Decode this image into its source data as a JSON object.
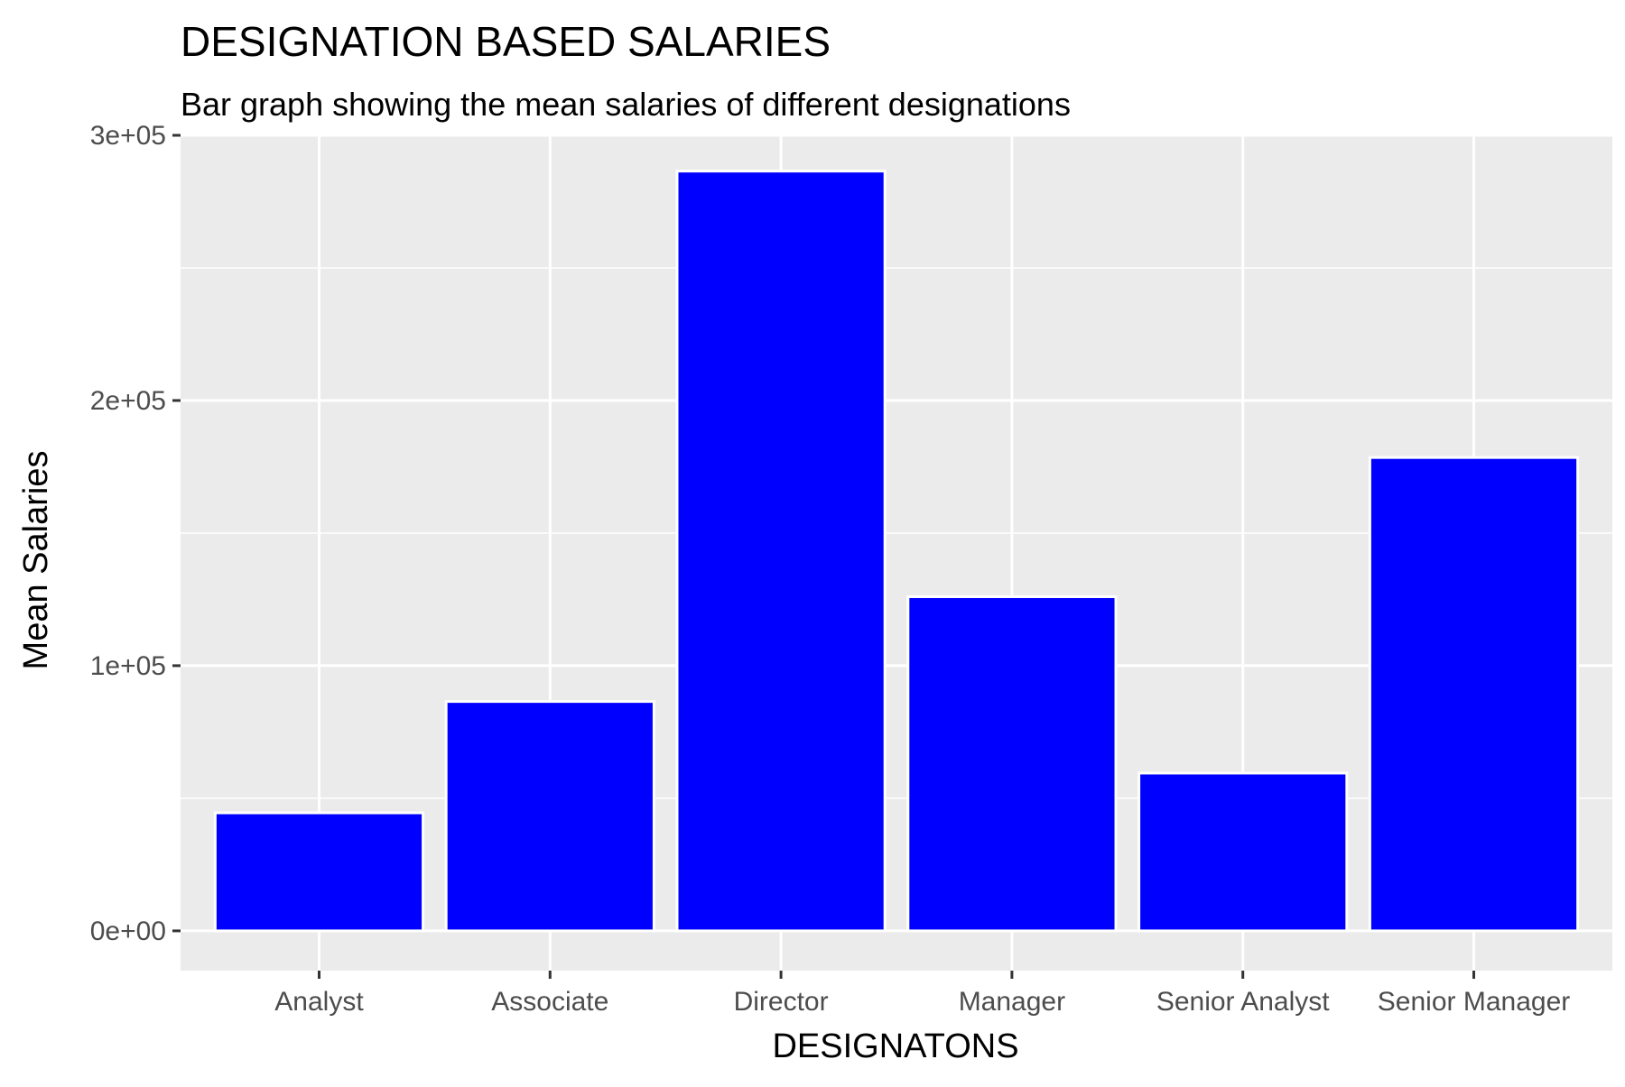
{
  "chart_data": {
    "type": "bar",
    "title": "DESIGNATION BASED SALARIES",
    "subtitle": "Bar graph showing the mean salaries of different designations",
    "xlabel": "DESIGNATONS",
    "ylabel": "Mean Salaries",
    "categories": [
      "Analyst",
      "Associate",
      "Director",
      "Manager",
      "Senior Analyst",
      "Senior Manager"
    ],
    "values": [
      44500,
      86500,
      286500,
      126000,
      59500,
      178500
    ],
    "ylim": [
      -15000,
      300000
    ],
    "yticks": [
      0,
      100000,
      200000,
      300000
    ],
    "ytick_labels": [
      "0e+00",
      "1e+05",
      "2e+05",
      "3e+05"
    ],
    "grid": true,
    "colors": {
      "bar_fill": "#0000ff",
      "bar_outline": "#ffffff",
      "panel_background": "#ebebeb",
      "grid": "#ffffff"
    }
  }
}
